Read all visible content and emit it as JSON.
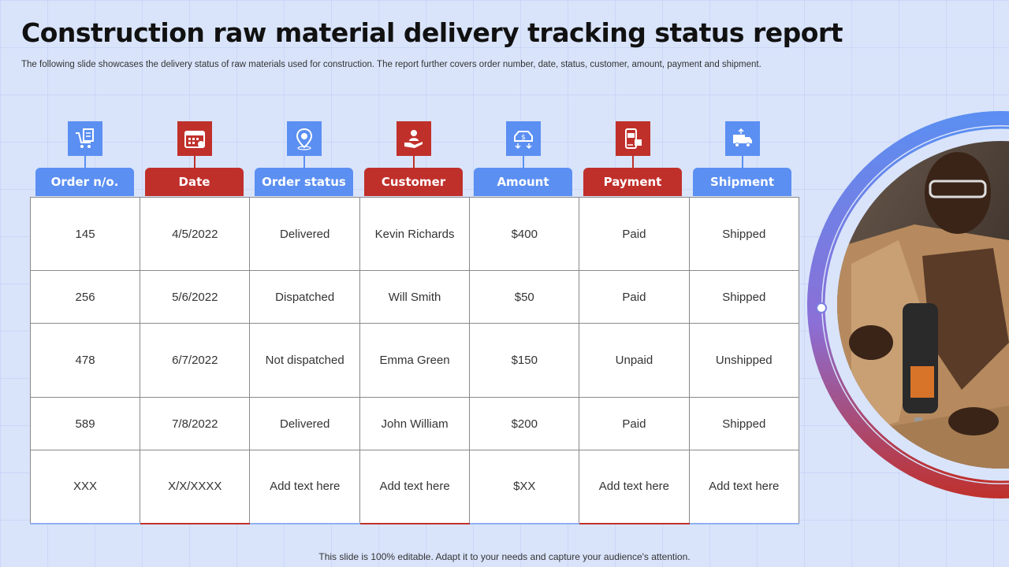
{
  "title": "Construction raw material delivery tracking status report",
  "subtitle": "The following slide showcases the delivery status of raw materials used for construction. The report further covers order number, date, status, customer, amount, payment and shipment.",
  "columns": [
    {
      "label": "Order n/o.",
      "icon": "cart-document-icon",
      "color": "blue"
    },
    {
      "label": "Date",
      "icon": "calendar-icon",
      "color": "red"
    },
    {
      "label": "Order status",
      "icon": "location-pin-icon",
      "color": "blue"
    },
    {
      "label": "Customer",
      "icon": "customer-hand-icon",
      "color": "red"
    },
    {
      "label": "Amount",
      "icon": "dollar-transfer-icon",
      "color": "blue"
    },
    {
      "label": "Payment",
      "icon": "mobile-payment-icon",
      "color": "red"
    },
    {
      "label": "Shipment",
      "icon": "delivery-truck-icon",
      "color": "blue"
    }
  ],
  "rows": [
    [
      "145",
      "4/5/2022",
      "Delivered",
      "Kevin Richards",
      "$400",
      "Paid",
      "Shipped"
    ],
    [
      "256",
      "5/6/2022",
      "Dispatched",
      "Will Smith",
      "$50",
      "Paid",
      "Shipped"
    ],
    [
      "478",
      "6/7/2022",
      "Not dispatched",
      "Emma Green",
      "$150",
      "Unpaid",
      "Unshipped"
    ],
    [
      "589",
      "7/8/2022",
      "Delivered",
      "John William",
      "$200",
      "Paid",
      "Shipped"
    ],
    [
      "XXX",
      "X/X/XXXX",
      "Add text here",
      "Add text here",
      "$XX",
      "Add text here",
      "Add text here"
    ]
  ],
  "footer": "This slide is 100% editable. Adapt it to your needs and capture your audience's attention.",
  "colors": {
    "blue": "#5b8ff2",
    "red": "#c0302b",
    "background": "#d9e4fb"
  }
}
